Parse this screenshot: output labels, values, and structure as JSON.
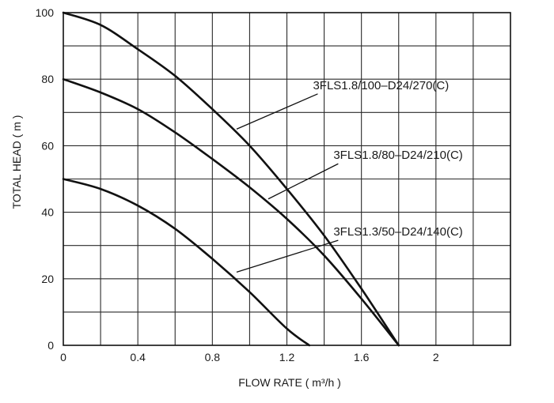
{
  "chart_data": {
    "type": "line",
    "title": "",
    "xlabel": "FLOW RATE ( m³/h )",
    "ylabel": "TOTAL HEAD ( m )",
    "xlim": [
      0,
      2.4
    ],
    "ylim": [
      0,
      100
    ],
    "grid": true,
    "x_ticks": [
      "0",
      "0.4",
      "0.8",
      "1.2",
      "1.6",
      "2"
    ],
    "x_tick_values": [
      0,
      0.4,
      0.8,
      1.2,
      1.6,
      2.0
    ],
    "y_ticks": [
      "0",
      "20",
      "40",
      "60",
      "80",
      "100"
    ],
    "y_tick_values": [
      0,
      20,
      40,
      60,
      80,
      100
    ],
    "series": [
      {
        "name": "3FLS1.8/100–D24/270(C)",
        "x": [
          0,
          0.2,
          0.4,
          0.6,
          0.8,
          1.0,
          1.2,
          1.4,
          1.6,
          1.8
        ],
        "y": [
          100,
          96.3,
          89,
          81,
          71,
          60,
          47,
          33,
          17,
          0
        ]
      },
      {
        "name": "3FLS1.8/80–D24/210(C)",
        "x": [
          0,
          0.2,
          0.4,
          0.6,
          0.8,
          1.0,
          1.2,
          1.4,
          1.6,
          1.8
        ],
        "y": [
          80,
          76,
          71,
          64,
          56,
          47.5,
          38,
          27,
          14,
          0
        ]
      },
      {
        "name": "3FLS1.3/50–D24/140(C)",
        "x": [
          0,
          0.2,
          0.4,
          0.6,
          0.8,
          1.0,
          1.2,
          1.32
        ],
        "y": [
          50,
          47,
          42,
          35,
          26,
          16,
          5,
          0
        ]
      }
    ],
    "annotations": [
      {
        "series": 0,
        "text": "3FLS1.8/100–D24/270(C)",
        "label_at": [
          1.34,
          77
        ],
        "pointer_to": [
          0.93,
          65
        ]
      },
      {
        "series": 1,
        "text": "3FLS1.8/80–D24/210(C)",
        "label_at": [
          1.45,
          56
        ],
        "pointer_to": [
          1.1,
          44
        ]
      },
      {
        "series": 2,
        "text": "3FLS1.3/50–D24/140(C)",
        "label_at": [
          1.45,
          33
        ],
        "pointer_to": [
          0.93,
          22
        ]
      }
    ]
  }
}
